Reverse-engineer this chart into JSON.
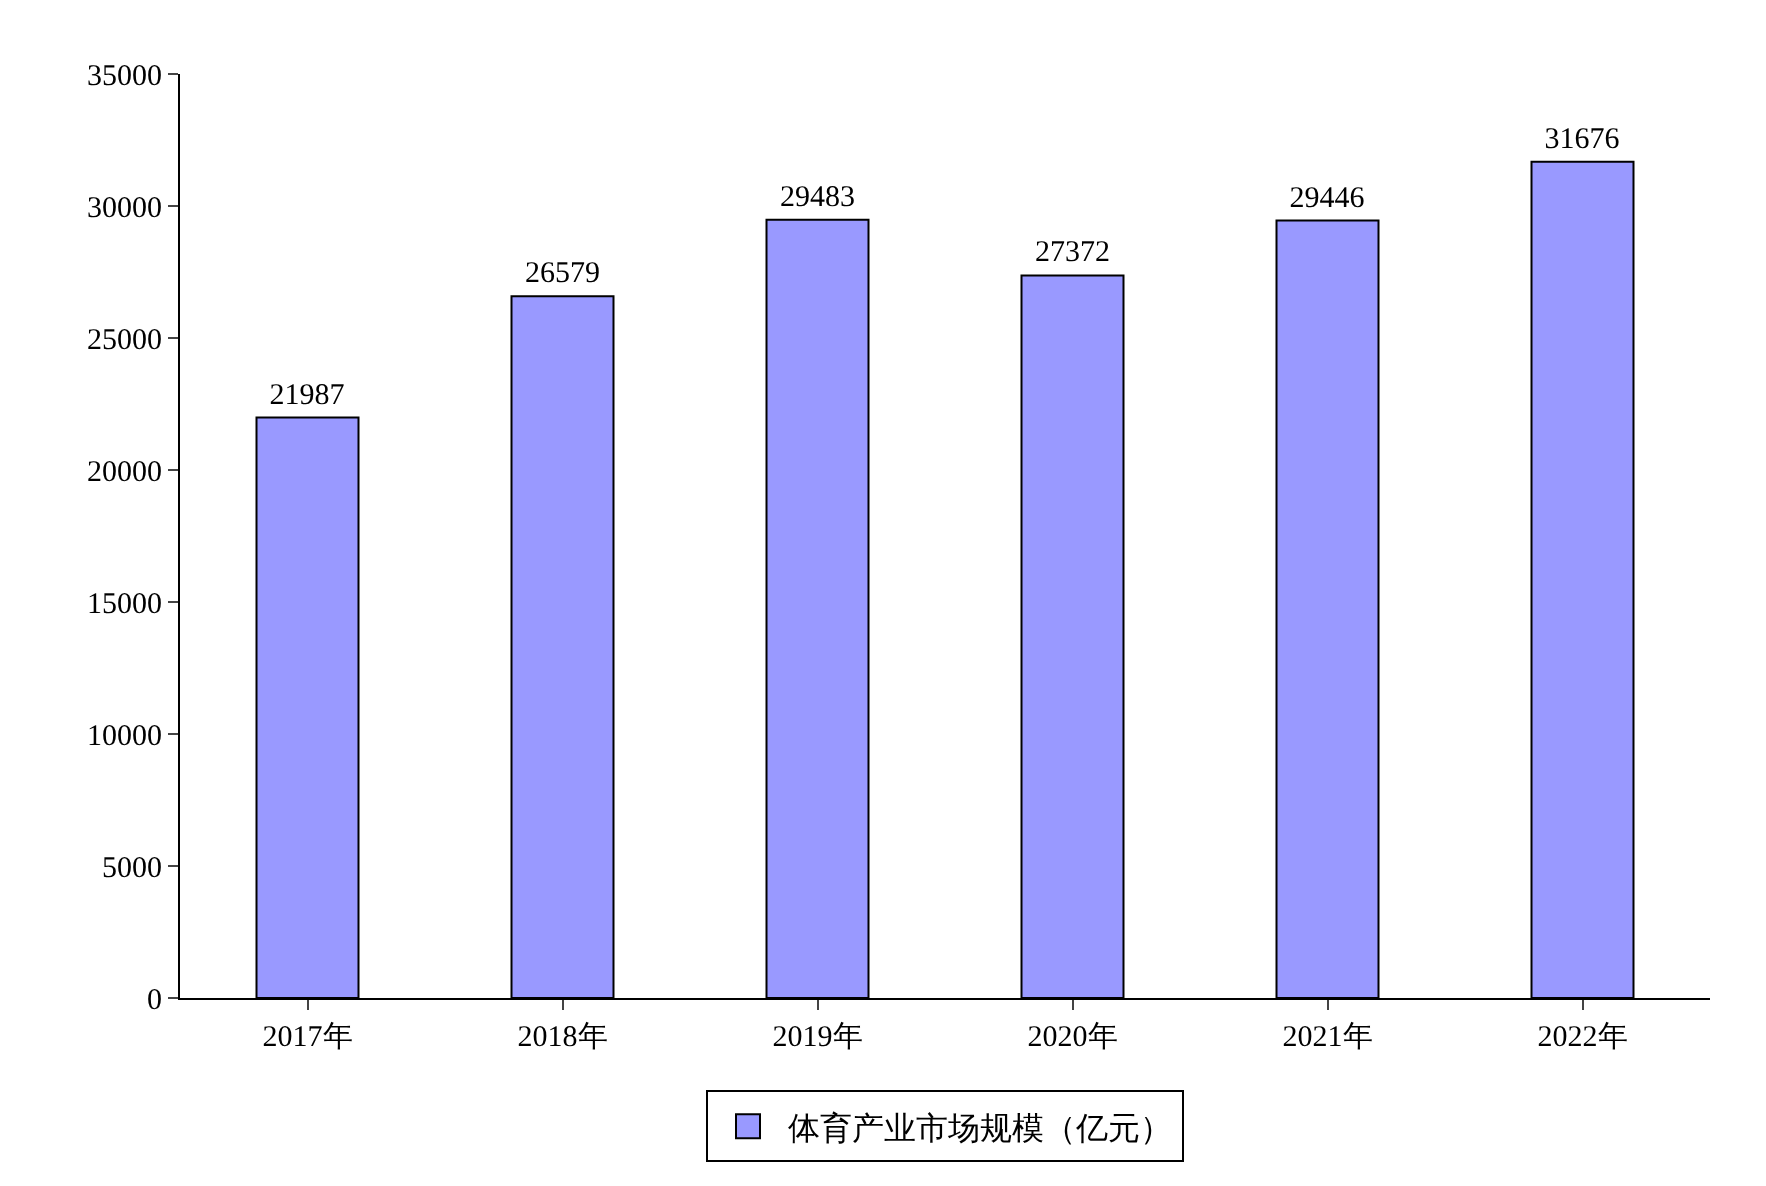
{
  "chart_data": {
    "type": "bar",
    "categories": [
      "2017年",
      "2018年",
      "2019年",
      "2020年",
      "2021年",
      "2022年"
    ],
    "series": [
      {
        "name": "体育产业市场规模（亿元）",
        "color": "#9999ff",
        "values": [
          21987,
          26579,
          29483,
          27372,
          29446,
          31676
        ]
      }
    ],
    "ylim": [
      0,
      35000
    ],
    "yticks": [
      0,
      5000,
      10000,
      15000,
      20000,
      25000,
      30000,
      35000
    ],
    "data_labels": true,
    "grid": false,
    "legend": "bottom"
  }
}
